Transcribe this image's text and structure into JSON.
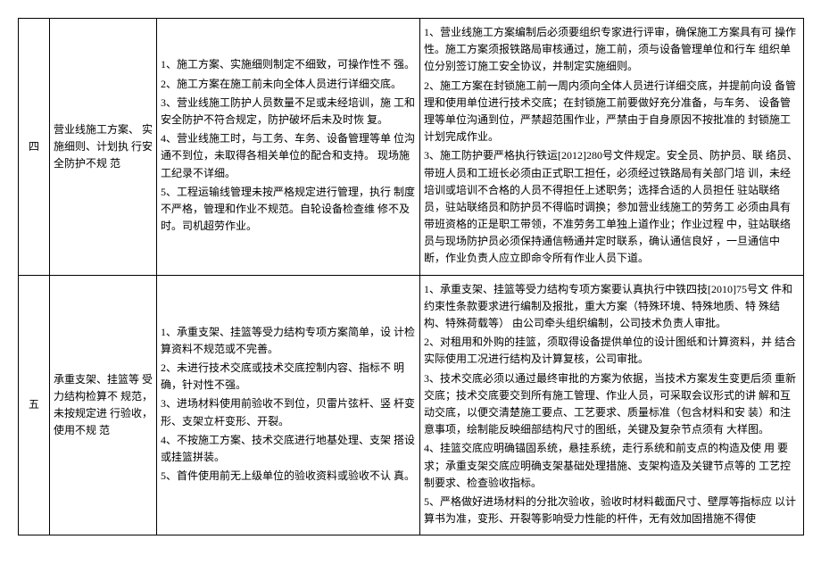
{
  "table": {
    "rows": [
      {
        "num": "四",
        "title": "营业线施工方案、 实施细则、计划执 行安全防护不规 范",
        "issues": [
          "1、施工方案、实施细则制定不细致，可操作性不 强。",
          "2、施工方案在施工前未向全体人员进行详细交底。",
          "3、营业线施工防护人员数量不足或未经培训，施 工和安全防护不符合规定，防护破坏后未及时恢 复。",
          "4、营业线施工时，与工务、车务、设备管理等单 位沟通不到位，未取得各相关单位的配合和支持。 现场施工纪录不详细。",
          "5、工程运输线管理未按严格规定进行管理，执行 制度不严格，管理和作业不规范。自轮设备检查维 修不及时。司机超劳作业。"
        ],
        "measures": [
          "1、营业线施工方案编制后必须要组织专家进行评审，确保施工方案具有可 操作性。施工方案须报铁路局审核通过，施工前，须与设备管理单位和行车 组织单位分别签订施工安全协议，并制定实施细则。",
          "2、施工方案在封锁施工前一周内须向全体人员进行详细交底，并提前向设 备管理和使用单位进行技术交底；在封锁施工前要做好充分准备，与车务、 设备管理等单位沟通到位，严禁超范围作业，严禁由于自身原因不按批准的 封锁施工计划完成作业。",
          "3、施工防护要严格执行铁运[2012]280号文件规定。安全员、防护员、联 络员、带班人员和工班长必须由正式职工担任，必须经过铁路局有关部门培 训，未经培训或培训不合格的人员不得担任上述职务；选择合适的人员担任 驻站联络员，驻站联络员和防护员不得临时调换；参加营业线施工的劳务工 必须由具有带班资格的正是职工带领，不准劳务工单独上道作业；作业过程 中，驻站联络员与现场防护员必须保持通信畅通并定时联系，确认通信良好 ，一旦通信中断，作业负责人应立即命令所有作业人员下道。"
        ]
      },
      {
        "num": "五",
        "title": "承重支架、挂篮等 受力结构检算不 规范，未按规定进 行验收，使用不规 范",
        "issues": [
          "1、承重支架、挂篮等受力结构专项方案简单，设 计检算资料不规范或不完善。",
          "2、未进行技术交底或技术交底控制内容、指标不 明确，针对性不强。",
          "3、进场材料使用前验收不到位，贝雷片弦杆、竖 杆变形、支架立杆变形、开裂。",
          "4、不按施工方案、技术交底进行地基处理、支架 搭设或挂篮拼装。",
          "5、首件使用前无上级单位的验收资料或验收不认 真。"
        ],
        "measures": [
          "1、承重支架、挂篮等受力结构专项方案要认真执行中铁四技[2010]75号文 件和约束性条款要求进行编制及报批，重大方案（特殊环境、特殊地质、特 殊结构、特殊荷载等） 由公司牵头组织编制，公司技术负责人审批。",
          "2、对租用和外购的挂篮，须取得设备提供单位的设计图纸和计算资料，并 结合实际使用工况进行结构及计算复核，公司审批。",
          "3、技术交底必须以通过最终审批的方案为依据，当技术方案发生变更后须 重新交底；技术交底要交到所有施工管理、作业人员，可采取会议形式的讲 解和互动交底，以便交清楚施工要点、工艺要求、质量标准（包含材料和安 装）和注意事项，绘制能反映细部结构尺寸的图纸，关键及复杂节点须有 大样图。",
          "4、挂篮交底应明确锚固系统，悬挂系统，走行系统和前支点的构造及使 用 要求；承重支架交底应明确支架基础处理措施、支架构造及关键节点等的 工艺控制要求、检查验收指标。",
          "5、严格做好进场材料的分批次验收，验收时材料截面尺寸、壁厚等指标应 以计算书为准，变形、开裂等影响受力性能的杆件，无有效加固措施不得使"
        ]
      }
    ]
  }
}
